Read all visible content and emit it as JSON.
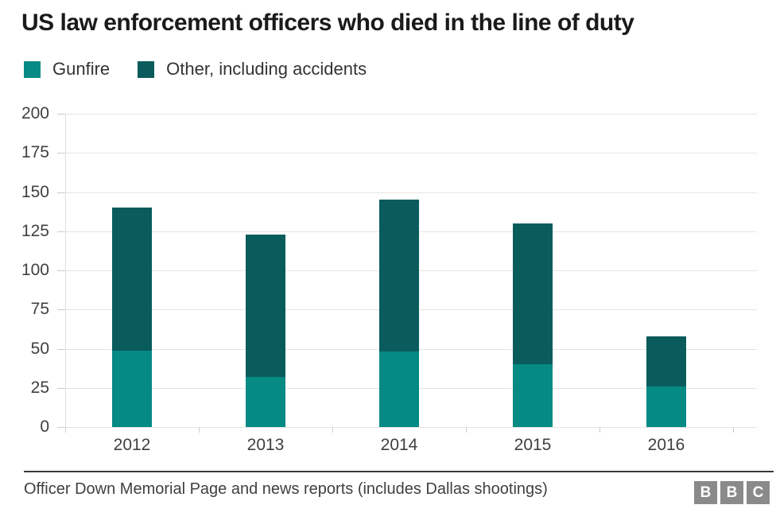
{
  "title": "US law enforcement officers who died in the line of duty",
  "legend": [
    {
      "label": "Gunfire",
      "color": "#058a84"
    },
    {
      "label": "Other, including accidents",
      "color": "#0a5c5c"
    }
  ],
  "chart_data": {
    "type": "bar",
    "stacked": true,
    "title": "US law enforcement officers who died in the line of duty",
    "categories": [
      "2012",
      "2013",
      "2014",
      "2015",
      "2016"
    ],
    "series": [
      {
        "name": "Gunfire",
        "color": "#058a84",
        "values": [
          49,
          32,
          48,
          40,
          26
        ]
      },
      {
        "name": "Other, including accidents",
        "color": "#0a5c5c",
        "values": [
          91,
          91,
          97,
          90,
          32
        ]
      }
    ],
    "totals": [
      140,
      123,
      145,
      130,
      58
    ],
    "xlabel": "",
    "ylabel": "",
    "ylim": [
      0,
      200
    ],
    "ytick_step": 25,
    "yticks": [
      "0",
      "25",
      "50",
      "75",
      "100",
      "125",
      "150",
      "175",
      "200"
    ],
    "grid": "horizontal",
    "legend_position": "top-left",
    "source": "Officer Down Memorial Page and news reports (includes Dallas shootings)"
  },
  "footer": {
    "source": "Officer Down Memorial Page and news reports (includes Dallas shootings)",
    "logo_letters": [
      "B",
      "B",
      "C"
    ]
  },
  "colors": {
    "gunfire": "#058a84",
    "other": "#0a5c5c",
    "grid": "#e4e4e4",
    "tick": "#cccccc",
    "axis_text": "#404040",
    "title_text": "#1a1a1a",
    "divider": "#3a3a3a",
    "bbc_gray": "#8a8a8a"
  }
}
